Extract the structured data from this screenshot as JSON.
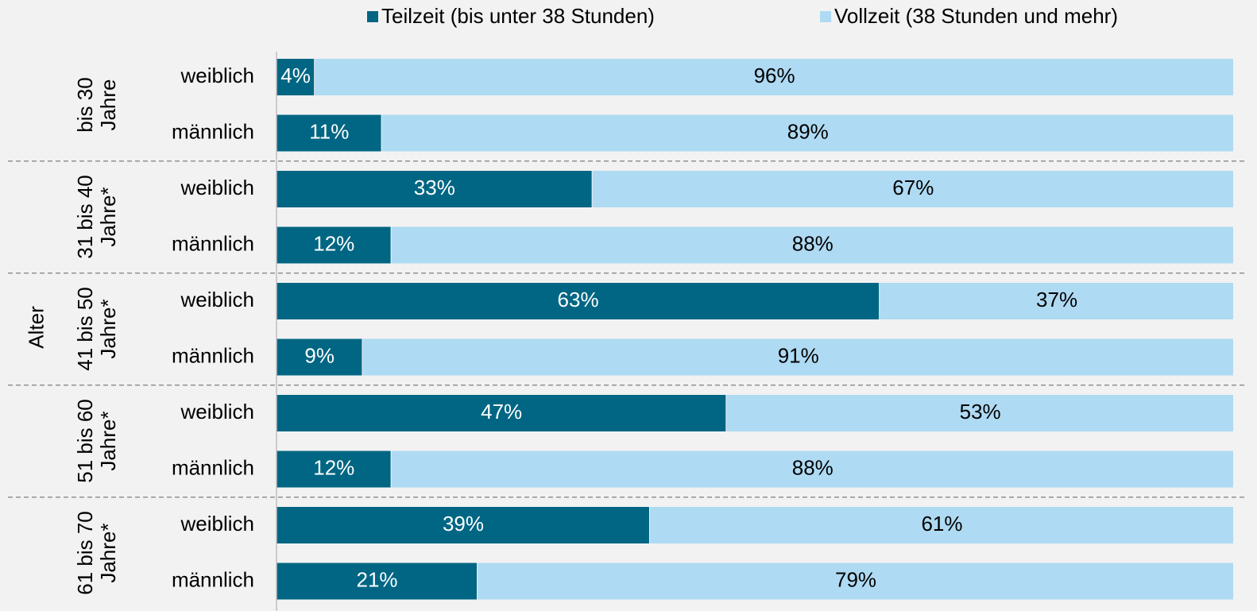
{
  "chart_data": {
    "type": "stacked-bar-horizontal",
    "axis_label": "Alter",
    "groups": [
      "bis 30 Jahre",
      "31 bis 40 Jahre*",
      "41 bis 50 Jahre*",
      "51 bis 60 Jahre*",
      "61 bis 70 Jahre*"
    ],
    "categories": [
      "weiblich",
      "männlich",
      "weiblich",
      "männlich",
      "weiblich",
      "männlich",
      "weiblich",
      "männlich",
      "weiblich",
      "männlich"
    ],
    "series": [
      {
        "name": "Teilzeit (bis unter 38 Stunden)",
        "color": "#006683",
        "values": [
          4,
          11,
          33,
          12,
          63,
          9,
          47,
          12,
          39,
          21
        ],
        "value_labels": [
          "4%",
          "11%",
          "33%",
          "12%",
          "63%",
          "9%",
          "47%",
          "12%",
          "39%",
          "21%"
        ]
      },
      {
        "name": "Vollzeit (38 Stunden und mehr)",
        "color": "#afdaf3",
        "values": [
          96,
          89,
          67,
          88,
          37,
          91,
          53,
          88,
          61,
          79
        ],
        "value_labels": [
          "96%",
          "89%",
          "67%",
          "88%",
          "37%",
          "91%",
          "53%",
          "88%",
          "61%",
          "79%"
        ]
      }
    ],
    "xlim": [
      0,
      100
    ]
  }
}
